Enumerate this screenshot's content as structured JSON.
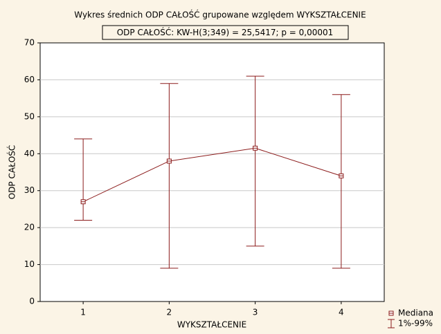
{
  "chart_data": {
    "type": "median-range",
    "title": "Wykres średnich    ODP CAŁOŚĆ grupowane względem WYKSZTAŁCENIE",
    "subtitle": "ODP CAŁOŚĆ:  KW-H(3;349) = 25,5417; p = 0,00001",
    "x_label": "WYKSZTAŁCENIE",
    "y_label": "ODP CAŁOŚĆ",
    "x": [
      1,
      2,
      3,
      4
    ],
    "series": [
      {
        "name": "Mediana",
        "color": "#8b1a1a",
        "values": [
          27,
          38,
          41.5,
          34
        ]
      },
      {
        "name": "1%-99%",
        "color": "#8b1a1a",
        "low": [
          22,
          9,
          15,
          9
        ],
        "high": [
          44,
          59,
          61,
          56
        ]
      }
    ],
    "xlim": [
      0.5,
      4.5
    ],
    "xticks": [
      1,
      2,
      3,
      4
    ],
    "ylim": [
      0,
      70
    ],
    "yticks": [
      0,
      10,
      20,
      30,
      40,
      50,
      60,
      70
    ],
    "grid": true,
    "legend": "bottom-right"
  }
}
